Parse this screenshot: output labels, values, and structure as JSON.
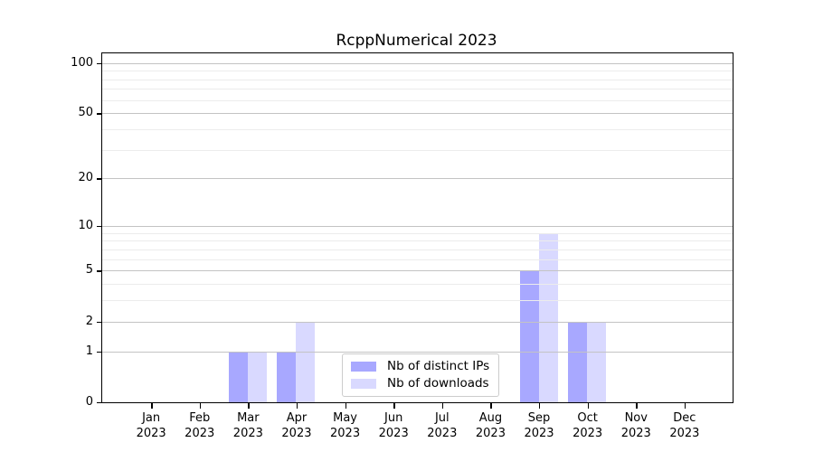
{
  "chart_data": {
    "type": "bar",
    "title": "RcppNumerical 2023",
    "xlabel": "",
    "ylabel": "",
    "categories": [
      "Jan",
      "Feb",
      "Mar",
      "Apr",
      "May",
      "Jun",
      "Jul",
      "Aug",
      "Sep",
      "Oct",
      "Nov",
      "Dec"
    ],
    "year_label": "2023",
    "series": [
      {
        "id": "ips",
        "name": "Nb of distinct IPs",
        "color": "rgba(0,0,255,0.34)",
        "values": [
          0,
          0,
          1,
          1,
          0,
          0,
          0,
          0,
          5,
          2,
          0,
          0
        ]
      },
      {
        "id": "downloads",
        "name": "Nb of downloads",
        "color": "rgba(0,0,255,0.15)",
        "values": [
          0,
          0,
          1,
          2,
          0,
          0,
          0,
          0,
          9,
          2,
          0,
          0
        ]
      }
    ],
    "yscale": "log1p",
    "ylim": [
      0,
      114
    ],
    "y_major_ticks": [
      0,
      1,
      2,
      5,
      10,
      20,
      50,
      100
    ],
    "y_minor_gridlines": [
      3,
      4,
      6,
      7,
      8,
      9,
      30,
      40,
      60,
      70,
      80,
      90
    ],
    "grid": true,
    "legend_position": "lower center"
  },
  "colors": {
    "grid_major": "#c3c3c3",
    "grid_minor": "#ececec",
    "axis": "#000000",
    "background": "#ffffff"
  }
}
